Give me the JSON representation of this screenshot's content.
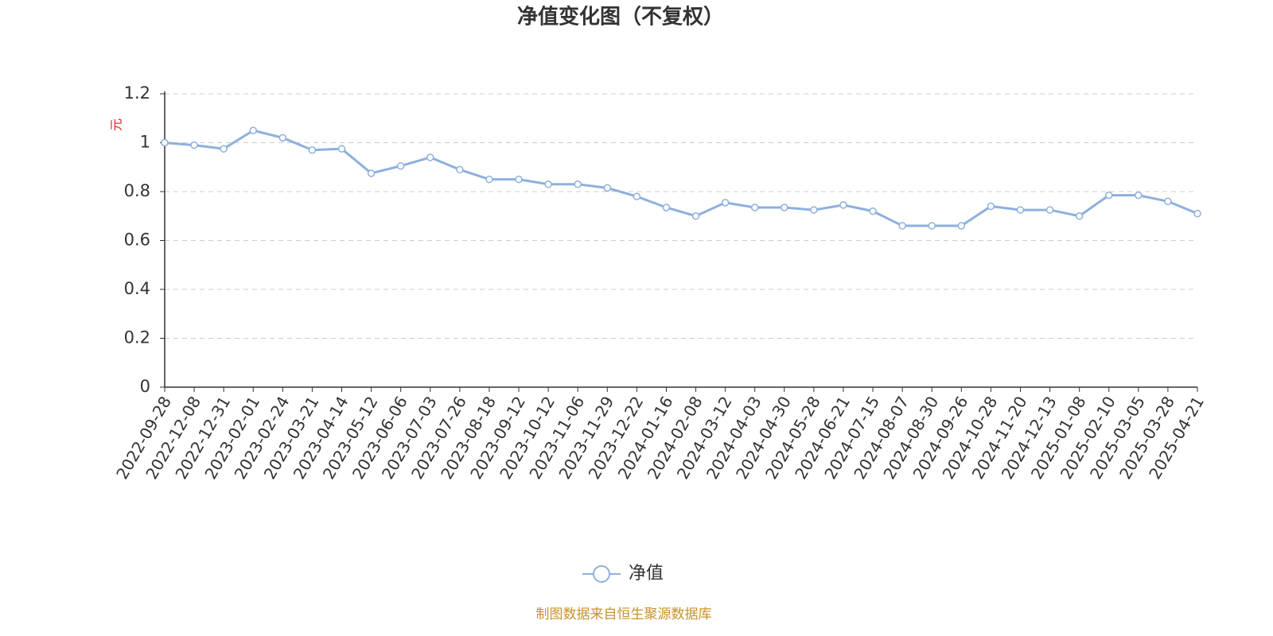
{
  "chart_data": {
    "type": "line",
    "title": "净值变化图（不复权）",
    "y_label": "元",
    "categories": [
      "2022-09-28",
      "2022-12-08",
      "2022-12-31",
      "2023-02-01",
      "2023-02-24",
      "2023-03-21",
      "2023-04-14",
      "2023-05-12",
      "2023-06-06",
      "2023-07-03",
      "2023-07-26",
      "2023-08-18",
      "2023-09-12",
      "2023-10-12",
      "2023-11-06",
      "2023-11-29",
      "2023-12-22",
      "2024-01-16",
      "2024-02-08",
      "2024-03-12",
      "2024-04-03",
      "2024-04-30",
      "2024-05-28",
      "2024-06-21",
      "2024-07-15",
      "2024-08-07",
      "2024-08-30",
      "2024-09-26",
      "2024-10-28",
      "2024-11-20",
      "2024-12-13",
      "2025-01-08",
      "2025-02-10",
      "2025-03-05",
      "2025-03-28",
      "2025-04-21"
    ],
    "series": [
      {
        "name": "净值",
        "color": "#8eb0dc",
        "values": [
          1.0,
          0.99,
          0.975,
          1.05,
          1.02,
          0.97,
          0.975,
          0.875,
          0.905,
          0.94,
          0.89,
          0.85,
          0.85,
          0.83,
          0.83,
          0.815,
          0.78,
          0.735,
          0.7,
          0.755,
          0.735,
          0.735,
          0.725,
          0.745,
          0.72,
          0.66,
          0.66,
          0.66,
          0.74,
          0.725,
          0.725,
          0.7,
          0.785,
          0.785,
          0.76,
          0.71
        ]
      }
    ],
    "ylim": [
      0,
      1.2
    ],
    "yticks": [
      0,
      0.2,
      0.4,
      0.6,
      0.8,
      1,
      1.2
    ],
    "grid": true,
    "source": "制图数据来自恒生聚源数据库"
  }
}
